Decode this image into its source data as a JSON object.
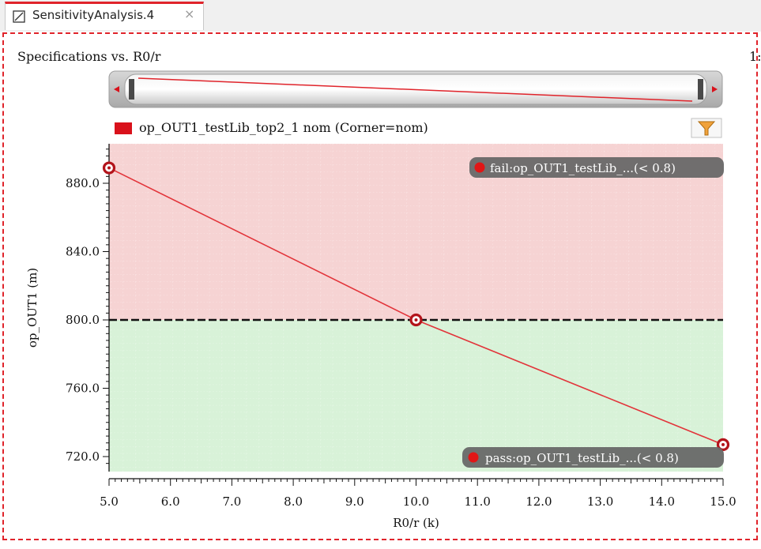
{
  "tab": {
    "title": "SensitivityAnalysis.4",
    "close_glyph": "×",
    "icon": "chart-icon"
  },
  "chart_title": "Specifications vs. R0/r",
  "page_indicator": "1:",
  "legend": {
    "label": "op_OUT1_testLib_top2_1 nom (Corner=nom)",
    "color": "#d9111b"
  },
  "filter_icon": "filter-icon",
  "spec_badges": {
    "fail": "fail:op_OUT1_testLib_...(< 0.8)",
    "pass": "pass:op_OUT1_testLib_...(< 0.8)"
  },
  "colors": {
    "fail_region": "#f6d3d3",
    "pass_region": "#d8f2d8",
    "series": "#e2343a",
    "marker": "#b3141b",
    "badge_bg": "#686868",
    "badge_dot": "#e01616",
    "spec_line": "#111111",
    "accent": "#e0242b"
  },
  "chart_data": {
    "type": "line",
    "xlabel": "R0/r (k)",
    "ylabel": "op_OUT1 (m)",
    "xlim": [
      5.0,
      15.0
    ],
    "ylim": [
      710.0,
      903.0
    ],
    "x_ticks": [
      "5.0",
      "6.0",
      "7.0",
      "8.0",
      "9.0",
      "10.0",
      "11.0",
      "12.0",
      "13.0",
      "14.0",
      "15.0"
    ],
    "y_ticks": [
      "720.0",
      "760.0",
      "800.0",
      "840.0",
      "880.0"
    ],
    "spec_threshold": 800.0,
    "series": [
      {
        "x": [
          5.0,
          10.0,
          15.0
        ],
        "y": [
          889.0,
          800.0,
          727.0
        ]
      }
    ],
    "grid": true
  }
}
